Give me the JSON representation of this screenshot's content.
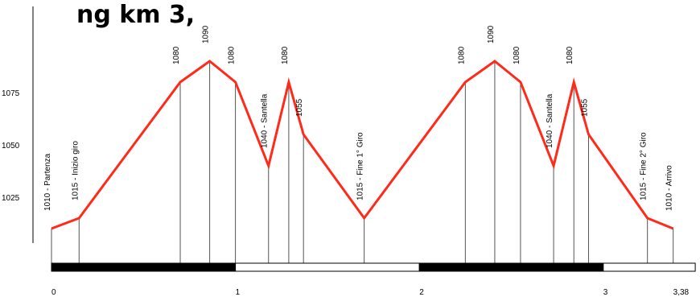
{
  "chart_data": {
    "type": "line",
    "title": "ng km 3,",
    "xlabel": "",
    "ylabel": "",
    "xlim": [
      0,
      3.5
    ],
    "ylim": [
      1000,
      1100
    ],
    "x_ticks": [
      {
        "value": 0,
        "label": "0"
      },
      {
        "value": 1,
        "label": "1"
      },
      {
        "value": 2,
        "label": "2"
      },
      {
        "value": 3,
        "label": "3"
      },
      {
        "value": 3.38,
        "label": "3,38"
      }
    ],
    "y_ticks": [
      {
        "value": 1025,
        "label": "1025"
      },
      {
        "value": 1050,
        "label": "1050"
      },
      {
        "value": 1075,
        "label": "1075"
      }
    ],
    "line_color": "#ff2a1a",
    "series": [
      {
        "points": [
          {
            "x": 0,
            "y": 1010,
            "label": "1010 - Partenza"
          },
          {
            "x": 0.15,
            "y": 1015,
            "label": "1015 - Inizio giro"
          },
          {
            "x": 0.7,
            "y": 1080,
            "label": "1080"
          },
          {
            "x": 0.86,
            "y": 1090,
            "label": "1090"
          },
          {
            "x": 1.0,
            "y": 1080,
            "label": "1080"
          },
          {
            "x": 1.18,
            "y": 1040,
            "label": "1040 - Santella"
          },
          {
            "x": 1.29,
            "y": 1080,
            "label": "1080"
          },
          {
            "x": 1.37,
            "y": 1055,
            "label": "1055"
          },
          {
            "x": 1.7,
            "y": 1015,
            "label": "1015 - Fine 1° Giro"
          },
          {
            "x": 2.25,
            "y": 1080,
            "label": "1080"
          },
          {
            "x": 2.41,
            "y": 1090,
            "label": "1090"
          },
          {
            "x": 2.55,
            "y": 1080,
            "label": "1080"
          },
          {
            "x": 2.73,
            "y": 1040,
            "label": "1040 - Santella"
          },
          {
            "x": 2.84,
            "y": 1080,
            "label": "1080"
          },
          {
            "x": 2.92,
            "y": 1055,
            "label": "1055"
          },
          {
            "x": 3.24,
            "y": 1015,
            "label": "1015 - Fine 2° Giro"
          },
          {
            "x": 3.38,
            "y": 1010,
            "label": "1010 - Arrivo"
          }
        ]
      }
    ],
    "scale_bar": {
      "segments": [
        {
          "from": 0,
          "to": 1,
          "color": "#000000"
        },
        {
          "from": 1,
          "to": 2,
          "color": "#ffffff"
        },
        {
          "from": 2,
          "to": 3,
          "color": "#000000"
        },
        {
          "from": 3,
          "to": 3.5,
          "color": "#ffffff"
        }
      ]
    },
    "grid": false,
    "legend": "none"
  }
}
